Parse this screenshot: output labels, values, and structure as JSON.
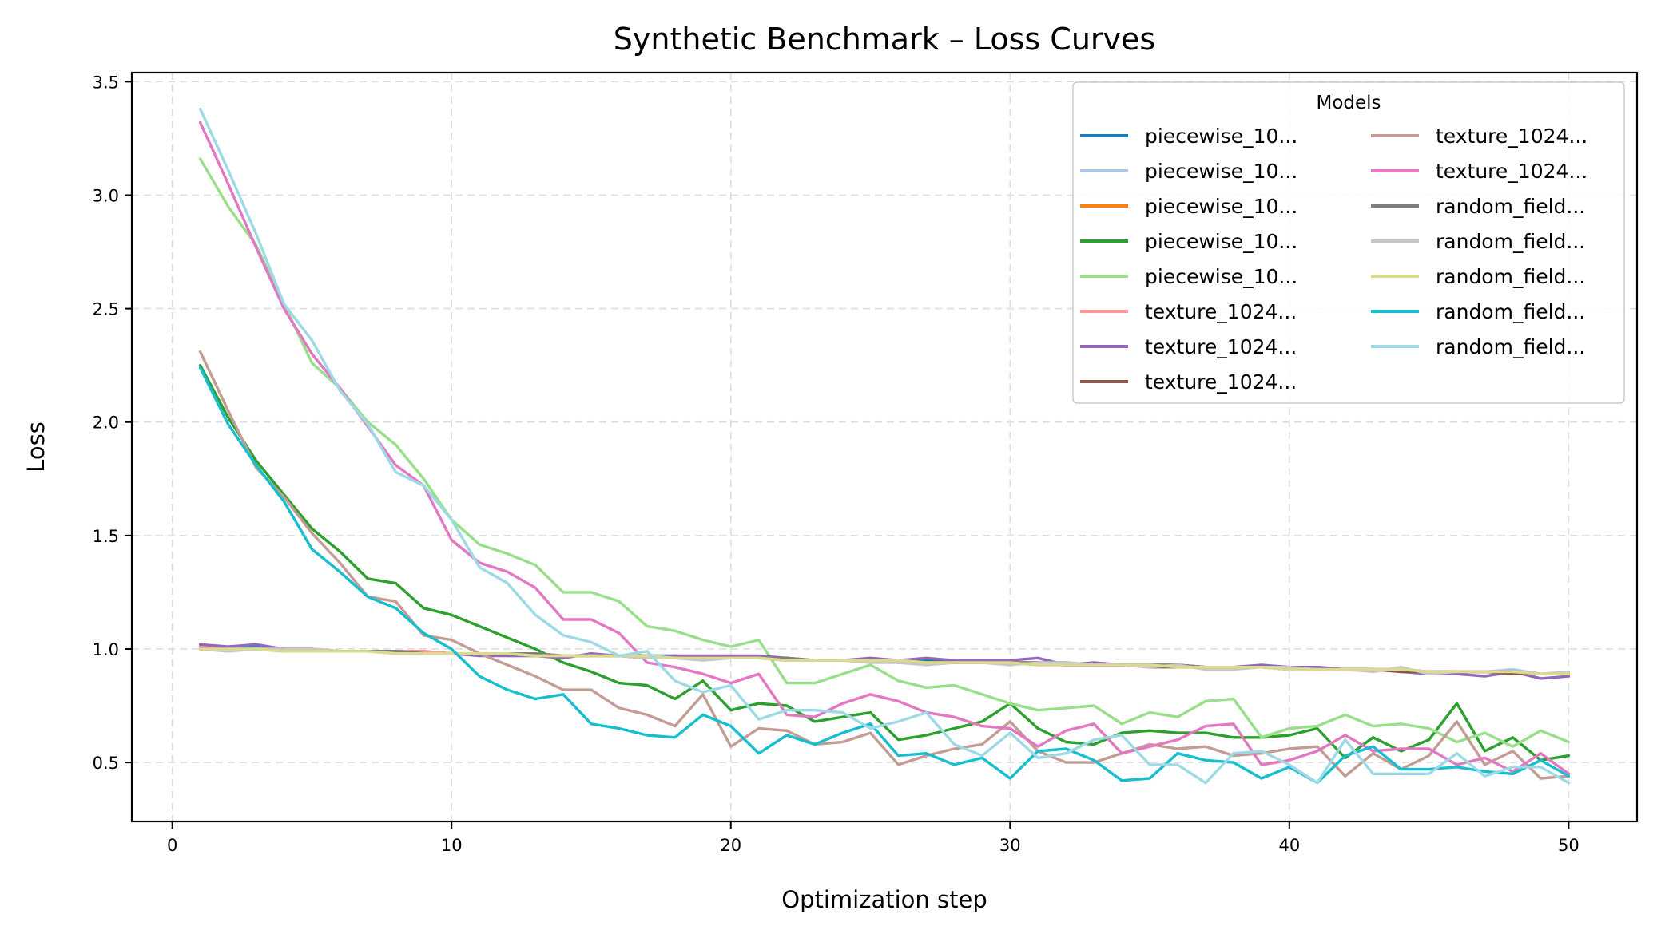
{
  "chart_data": {
    "type": "line",
    "title": "Synthetic Benchmark – Loss Curves",
    "xlabel": "Optimization step",
    "ylabel": "Loss",
    "xlim": [
      -1.45,
      52.45
    ],
    "ylim": [
      0.24,
      3.54
    ],
    "x_ticks": [
      0,
      10,
      20,
      30,
      40,
      50
    ],
    "y_ticks": [
      0.5,
      1.0,
      1.5,
      2.0,
      2.5,
      3.0,
      3.5
    ],
    "x_tick_labels": [
      "0",
      "10",
      "20",
      "30",
      "40",
      "50"
    ],
    "y_tick_labels": [
      "0.5",
      "1.0",
      "1.5",
      "2.0",
      "2.5",
      "3.0",
      "3.5"
    ],
    "grid": true,
    "legend": {
      "title": "Models",
      "placement": "top-right",
      "columns": 2
    },
    "x": [
      1,
      2,
      3,
      4,
      5,
      6,
      7,
      8,
      9,
      10,
      11,
      12,
      13,
      14,
      15,
      16,
      17,
      18,
      19,
      20,
      21,
      22,
      23,
      24,
      25,
      26,
      27,
      28,
      29,
      30,
      31,
      32,
      33,
      34,
      35,
      36,
      37,
      38,
      39,
      40,
      41,
      42,
      43,
      44,
      45,
      46,
      47,
      48,
      49,
      50
    ],
    "series": [
      {
        "name": "piecewise_10...",
        "color": "#1f77b4",
        "values": [
          1.01,
          1.0,
          1.01,
          1.0,
          1.0,
          0.99,
          0.99,
          0.99,
          0.99,
          0.98,
          0.98,
          0.98,
          0.98,
          0.97,
          0.97,
          0.97,
          0.97,
          0.97,
          0.96,
          0.96,
          0.96,
          0.96,
          0.95,
          0.95,
          0.95,
          0.95,
          0.95,
          0.94,
          0.94,
          0.94,
          0.94,
          0.94,
          0.93,
          0.93,
          0.93,
          0.93,
          0.92,
          0.92,
          0.92,
          0.92,
          0.92,
          0.91,
          0.91,
          0.91,
          0.9,
          0.9,
          0.9,
          0.9,
          0.89,
          0.89
        ]
      },
      {
        "name": "piecewise_10...",
        "color": "#aec7e8",
        "values": [
          1.0,
          0.99,
          1.0,
          1.0,
          0.99,
          0.99,
          0.99,
          0.98,
          0.98,
          0.98,
          0.98,
          0.97,
          0.97,
          0.97,
          0.97,
          0.97,
          0.97,
          0.96,
          0.96,
          0.96,
          0.96,
          0.95,
          0.95,
          0.95,
          0.95,
          0.95,
          0.94,
          0.94,
          0.94,
          0.94,
          0.94,
          0.93,
          0.93,
          0.93,
          0.93,
          0.92,
          0.92,
          0.92,
          0.92,
          0.91,
          0.91,
          0.91,
          0.91,
          0.9,
          0.9,
          0.9,
          0.9,
          0.91,
          0.89,
          0.89
        ]
      },
      {
        "name": "piecewise_10...",
        "color": "#ff7f0e",
        "values": [
          1.0,
          1.0,
          1.0,
          1.0,
          0.99,
          0.99,
          0.99,
          0.99,
          0.98,
          0.98,
          0.98,
          0.98,
          0.98,
          0.97,
          0.97,
          0.97,
          0.97,
          0.96,
          0.96,
          0.96,
          0.96,
          0.96,
          0.95,
          0.95,
          0.95,
          0.95,
          0.94,
          0.94,
          0.94,
          0.94,
          0.94,
          0.93,
          0.93,
          0.93,
          0.93,
          0.92,
          0.92,
          0.92,
          0.92,
          0.92,
          0.91,
          0.91,
          0.91,
          0.91,
          0.9,
          0.9,
          0.9,
          0.9,
          0.89,
          0.89
        ]
      },
      {
        "name": "piecewise_10...",
        "color": "#2ca02c",
        "values": [
          2.25,
          2.02,
          1.83,
          1.68,
          1.53,
          1.43,
          1.31,
          1.29,
          1.18,
          1.15,
          1.1,
          1.05,
          1.0,
          0.94,
          0.9,
          0.85,
          0.84,
          0.78,
          0.86,
          0.73,
          0.76,
          0.75,
          0.68,
          0.7,
          0.72,
          0.6,
          0.62,
          0.65,
          0.68,
          0.76,
          0.65,
          0.59,
          0.58,
          0.63,
          0.64,
          0.63,
          0.63,
          0.61,
          0.61,
          0.62,
          0.65,
          0.52,
          0.61,
          0.55,
          0.6,
          0.76,
          0.55,
          0.61,
          0.51,
          0.53
        ]
      },
      {
        "name": "piecewise_10...",
        "color": "#98df8a",
        "values": [
          3.16,
          2.95,
          2.78,
          2.52,
          2.26,
          2.15,
          2.0,
          1.9,
          1.75,
          1.57,
          1.46,
          1.42,
          1.37,
          1.25,
          1.25,
          1.21,
          1.1,
          1.08,
          1.04,
          1.01,
          1.04,
          0.85,
          0.85,
          0.89,
          0.93,
          0.86,
          0.83,
          0.84,
          0.8,
          0.76,
          0.73,
          0.74,
          0.75,
          0.67,
          0.72,
          0.7,
          0.77,
          0.78,
          0.61,
          0.65,
          0.66,
          0.71,
          0.66,
          0.67,
          0.65,
          0.59,
          0.63,
          0.57,
          0.64,
          0.59
        ]
      },
      {
        "name": "texture_1024...",
        "color": "#ff9896",
        "values": [
          1.01,
          1.0,
          1.0,
          1.0,
          1.0,
          0.99,
          0.99,
          0.99,
          0.99,
          0.98,
          0.98,
          0.98,
          0.98,
          0.97,
          0.97,
          0.97,
          0.97,
          0.96,
          0.96,
          0.96,
          0.96,
          0.95,
          0.95,
          0.95,
          0.95,
          0.95,
          0.94,
          0.94,
          0.94,
          0.94,
          0.94,
          0.93,
          0.93,
          0.93,
          0.93,
          0.92,
          0.92,
          0.92,
          0.92,
          0.92,
          0.91,
          0.91,
          0.91,
          0.91,
          0.9,
          0.9,
          0.9,
          0.9,
          0.89,
          0.89
        ]
      },
      {
        "name": "texture_1024...",
        "color": "#9467bd",
        "values": [
          1.02,
          1.01,
          1.02,
          1.0,
          0.99,
          0.99,
          0.99,
          0.99,
          0.98,
          0.98,
          0.97,
          0.97,
          0.97,
          0.96,
          0.98,
          0.97,
          0.96,
          0.97,
          0.97,
          0.97,
          0.97,
          0.96,
          0.95,
          0.95,
          0.96,
          0.95,
          0.96,
          0.95,
          0.95,
          0.95,
          0.96,
          0.93,
          0.94,
          0.93,
          0.92,
          0.93,
          0.92,
          0.92,
          0.93,
          0.92,
          0.92,
          0.91,
          0.91,
          0.9,
          0.89,
          0.89,
          0.88,
          0.9,
          0.87,
          0.88
        ]
      },
      {
        "name": "texture_1024...",
        "color": "#8c564b",
        "values": [
          1.0,
          1.0,
          1.0,
          0.99,
          0.99,
          0.99,
          0.99,
          0.99,
          0.98,
          0.98,
          0.98,
          0.98,
          0.97,
          0.97,
          0.97,
          0.97,
          0.96,
          0.96,
          0.96,
          0.96,
          0.96,
          0.95,
          0.95,
          0.95,
          0.95,
          0.94,
          0.94,
          0.94,
          0.94,
          0.94,
          0.93,
          0.93,
          0.93,
          0.93,
          0.92,
          0.92,
          0.92,
          0.92,
          0.92,
          0.91,
          0.91,
          0.91,
          0.91,
          0.9,
          0.9,
          0.9,
          0.9,
          0.89,
          0.89,
          0.89
        ]
      },
      {
        "name": "texture_1024...",
        "color": "#c49c94",
        "values": [
          2.31,
          2.05,
          1.8,
          1.67,
          1.51,
          1.38,
          1.23,
          1.21,
          1.06,
          1.04,
          0.98,
          0.93,
          0.88,
          0.82,
          0.82,
          0.74,
          0.71,
          0.66,
          0.8,
          0.57,
          0.65,
          0.64,
          0.58,
          0.59,
          0.63,
          0.49,
          0.53,
          0.56,
          0.58,
          0.68,
          0.55,
          0.5,
          0.5,
          0.54,
          0.58,
          0.56,
          0.57,
          0.53,
          0.54,
          0.56,
          0.57,
          0.44,
          0.54,
          0.47,
          0.53,
          0.68,
          0.49,
          0.55,
          0.43,
          0.44
        ]
      },
      {
        "name": "texture_1024...",
        "color": "#e377c2",
        "values": [
          3.32,
          3.05,
          2.77,
          2.5,
          2.3,
          2.15,
          1.98,
          1.81,
          1.72,
          1.48,
          1.38,
          1.34,
          1.27,
          1.13,
          1.13,
          1.07,
          0.94,
          0.92,
          0.89,
          0.85,
          0.89,
          0.71,
          0.7,
          0.76,
          0.8,
          0.77,
          0.72,
          0.7,
          0.66,
          0.65,
          0.57,
          0.64,
          0.67,
          0.54,
          0.57,
          0.6,
          0.66,
          0.67,
          0.49,
          0.51,
          0.55,
          0.62,
          0.55,
          0.56,
          0.56,
          0.49,
          0.52,
          0.46,
          0.54,
          0.45
        ]
      },
      {
        "name": "random_field...",
        "color": "#7f7f7f",
        "values": [
          1.0,
          1.0,
          1.0,
          1.0,
          0.99,
          0.99,
          0.99,
          0.99,
          0.98,
          0.98,
          0.98,
          0.98,
          0.98,
          0.97,
          0.97,
          0.97,
          0.97,
          0.96,
          0.96,
          0.96,
          0.96,
          0.96,
          0.95,
          0.95,
          0.95,
          0.95,
          0.94,
          0.94,
          0.94,
          0.94,
          0.94,
          0.93,
          0.93,
          0.93,
          0.93,
          0.93,
          0.92,
          0.92,
          0.92,
          0.92,
          0.91,
          0.91,
          0.91,
          0.91,
          0.9,
          0.9,
          0.9,
          0.9,
          0.89,
          0.89
        ]
      },
      {
        "name": "random_field...",
        "color": "#c7c7c7",
        "values": [
          1.0,
          0.99,
          1.0,
          1.0,
          1.0,
          0.99,
          0.99,
          0.98,
          0.98,
          0.98,
          0.98,
          0.98,
          0.97,
          0.97,
          0.97,
          0.97,
          0.96,
          0.96,
          0.95,
          0.96,
          0.96,
          0.95,
          0.95,
          0.95,
          0.94,
          0.94,
          0.93,
          0.94,
          0.94,
          0.93,
          0.94,
          0.94,
          0.93,
          0.93,
          0.92,
          0.93,
          0.91,
          0.91,
          0.92,
          0.92,
          0.91,
          0.91,
          0.9,
          0.92,
          0.89,
          0.9,
          0.9,
          0.9,
          0.89,
          0.9
        ]
      },
      {
        "name": "random_field...",
        "color": "#dbdb8d",
        "values": [
          1.0,
          1.0,
          1.0,
          0.99,
          0.99,
          0.99,
          0.99,
          0.98,
          0.98,
          0.98,
          0.98,
          0.98,
          0.97,
          0.97,
          0.97,
          0.97,
          0.97,
          0.96,
          0.96,
          0.96,
          0.96,
          0.95,
          0.95,
          0.95,
          0.95,
          0.95,
          0.94,
          0.94,
          0.94,
          0.94,
          0.93,
          0.93,
          0.93,
          0.93,
          0.93,
          0.92,
          0.92,
          0.92,
          0.92,
          0.91,
          0.91,
          0.91,
          0.91,
          0.91,
          0.9,
          0.9,
          0.9,
          0.9,
          0.89,
          0.89
        ]
      },
      {
        "name": "random_field...",
        "color": "#17becf",
        "values": [
          2.24,
          1.99,
          1.81,
          1.65,
          1.44,
          1.34,
          1.23,
          1.18,
          1.07,
          1.0,
          0.88,
          0.82,
          0.78,
          0.8,
          0.67,
          0.65,
          0.62,
          0.61,
          0.71,
          0.66,
          0.54,
          0.62,
          0.58,
          0.63,
          0.67,
          0.53,
          0.54,
          0.49,
          0.52,
          0.43,
          0.55,
          0.56,
          0.51,
          0.42,
          0.43,
          0.54,
          0.51,
          0.5,
          0.43,
          0.48,
          0.41,
          0.53,
          0.57,
          0.47,
          0.47,
          0.48,
          0.46,
          0.45,
          0.51,
          0.44
        ]
      },
      {
        "name": "random_field...",
        "color": "#9edae5",
        "values": [
          3.38,
          3.11,
          2.83,
          2.52,
          2.36,
          2.14,
          1.99,
          1.78,
          1.72,
          1.57,
          1.36,
          1.29,
          1.15,
          1.06,
          1.03,
          0.97,
          0.99,
          0.86,
          0.81,
          0.84,
          0.69,
          0.73,
          0.73,
          0.72,
          0.65,
          0.68,
          0.72,
          0.58,
          0.53,
          0.63,
          0.52,
          0.54,
          0.6,
          0.62,
          0.49,
          0.49,
          0.41,
          0.54,
          0.55,
          0.49,
          0.41,
          0.6,
          0.45,
          0.45,
          0.45,
          0.54,
          0.44,
          0.48,
          0.48,
          0.41
        ]
      }
    ]
  }
}
